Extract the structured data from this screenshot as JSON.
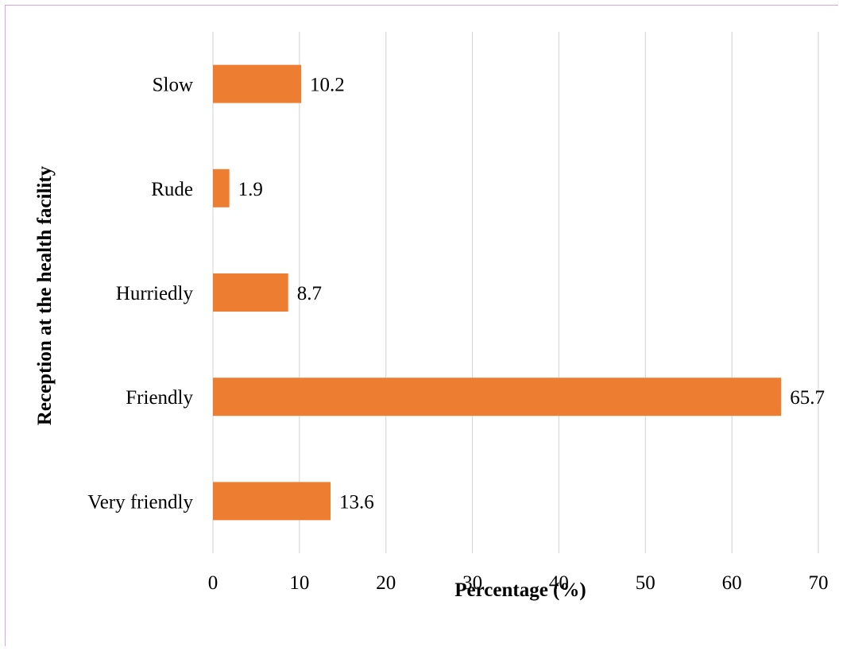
{
  "chart_data": {
    "type": "bar",
    "orientation": "horizontal",
    "categories": [
      "Slow",
      "Rude",
      "Hurriedly",
      "Friendly",
      "Very friendly"
    ],
    "values": [
      10.2,
      1.9,
      8.7,
      65.7,
      13.6
    ],
    "data_labels": [
      "10.2",
      "1.9",
      "8.7",
      "65.7",
      "13.6"
    ],
    "xlabel": "Percentage (%)",
    "ylabel": "Reception at the health facility",
    "xlim": [
      0,
      70
    ],
    "xticks": [
      0,
      10,
      20,
      30,
      40,
      50,
      60,
      70
    ],
    "grid": "vertical",
    "bar_color": "#ed7d31",
    "gridline_color": "#d9d9d9"
  }
}
